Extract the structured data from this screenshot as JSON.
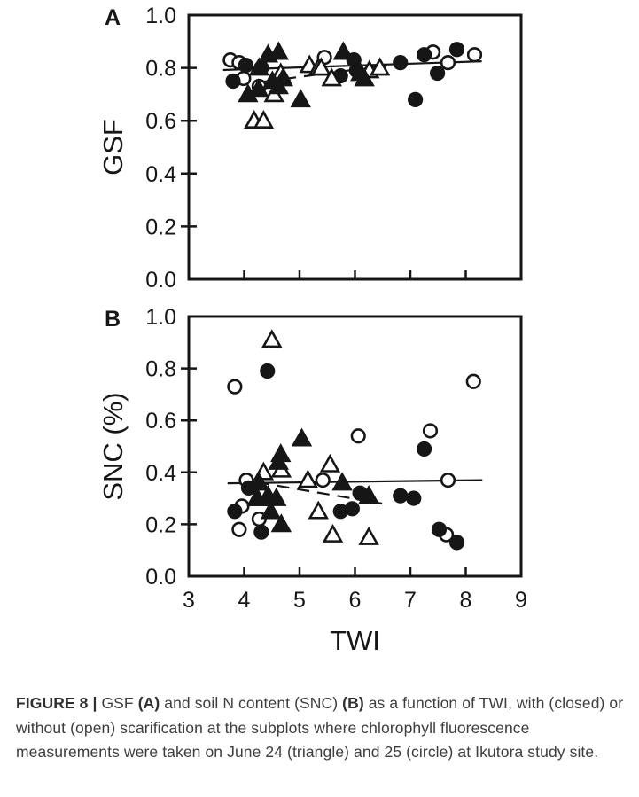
{
  "caption": {
    "label": "FIGURE 8 | ",
    "seg1": "GSF ",
    "seg2": "(A)",
    "seg3": " and soil N content (SNC) ",
    "seg4": "(B)",
    "seg5": " as a function of TWI, with (closed) or without (open) scarification at the subplots where chlorophyll fluorescence measurements were taken on June 24 (triangle) and 25 (circle) at Ikutora study site."
  },
  "legend_semantics": {
    "closed_markers": "with scarification",
    "open_markers": "without scarification",
    "triangle": "June 24",
    "circle": "June 25"
  },
  "colors": {
    "ink": "#161616",
    "background": "#ffffff",
    "caption_text": "#3d3d3d"
  },
  "chart_data": [
    {
      "type": "scatter",
      "panel": "A",
      "title": "",
      "xlabel": "",
      "ylabel": "GSF",
      "xlim": [
        3,
        9
      ],
      "ylim": [
        0.0,
        1.0
      ],
      "grid": false,
      "yticks": [
        0.0,
        0.2,
        0.4,
        0.6,
        0.8,
        1.0
      ],
      "ytick_labels": [
        "0.0",
        "0.2",
        "0.4",
        "0.6",
        "0.8",
        "1.0"
      ],
      "xtick_marks": [
        4,
        5,
        6,
        7,
        8
      ],
      "xtick_labels": [],
      "series": [
        {
          "name": "June 25 without scarification (open circle)",
          "marker": "circle",
          "fill": "open",
          "points": [
            [
              3.75,
              0.83
            ],
            [
              3.91,
              0.82
            ],
            [
              3.99,
              0.76
            ],
            [
              4.27,
              0.73
            ],
            [
              5.45,
              0.84
            ],
            [
              7.41,
              0.86
            ],
            [
              7.68,
              0.82
            ],
            [
              8.16,
              0.85
            ]
          ]
        },
        {
          "name": "June 25 with scarification (closed circle)",
          "marker": "circle",
          "fill": "closed",
          "points": [
            [
              3.8,
              0.75
            ],
            [
              4.03,
              0.81
            ],
            [
              4.31,
              0.8
            ],
            [
              5.74,
              0.77
            ],
            [
              5.98,
              0.83
            ],
            [
              6.03,
              0.79
            ],
            [
              6.82,
              0.82
            ],
            [
              7.09,
              0.68
            ],
            [
              7.25,
              0.85
            ],
            [
              7.49,
              0.78
            ],
            [
              7.84,
              0.87
            ]
          ]
        },
        {
          "name": "June 24 without scarification (open triangle)",
          "marker": "triangle",
          "fill": "open",
          "points": [
            [
              4.18,
              0.6
            ],
            [
              4.35,
              0.6
            ],
            [
              4.54,
              0.7
            ],
            [
              4.66,
              0.78
            ],
            [
              5.18,
              0.81
            ],
            [
              5.34,
              0.8
            ],
            [
              5.39,
              0.8
            ],
            [
              5.58,
              0.76
            ],
            [
              6.26,
              0.79
            ],
            [
              6.45,
              0.8
            ]
          ]
        },
        {
          "name": "June 24 with scarification (closed triangle)",
          "marker": "triangle",
          "fill": "closed",
          "points": [
            [
              4.07,
              0.7
            ],
            [
              4.26,
              0.72
            ],
            [
              4.27,
              0.8
            ],
            [
              4.43,
              0.85
            ],
            [
              4.51,
              0.75
            ],
            [
              4.62,
              0.86
            ],
            [
              4.62,
              0.73
            ],
            [
              4.7,
              0.76
            ],
            [
              5.02,
              0.68
            ],
            [
              5.79,
              0.86
            ],
            [
              6.1,
              0.78
            ],
            [
              6.17,
              0.76
            ]
          ]
        }
      ],
      "trend_lines": [
        {
          "style": "solid",
          "from": [
            3.62,
            0.792
          ],
          "to": [
            8.29,
            0.825
          ]
        },
        {
          "style": "dashed",
          "from": [
            4.35,
            0.748
          ],
          "to": [
            6.58,
            0.809
          ]
        }
      ]
    },
    {
      "type": "scatter",
      "panel": "B",
      "title": "",
      "xlabel": "TWI",
      "ylabel": "SNC (%)",
      "xlim": [
        3,
        9
      ],
      "ylim": [
        0.0,
        1.0
      ],
      "grid": false,
      "yticks": [
        0.0,
        0.2,
        0.4,
        0.6,
        0.8,
        1.0
      ],
      "ytick_labels": [
        "0.0",
        "0.2",
        "0.4",
        "0.6",
        "0.8",
        "1.0"
      ],
      "xtick_marks": [
        4,
        5,
        6,
        7,
        8
      ],
      "xtick_labels": [
        {
          "v": 3,
          "t": "3"
        },
        {
          "v": 4,
          "t": "4"
        },
        {
          "v": 5,
          "t": "5"
        },
        {
          "v": 6,
          "t": "6"
        },
        {
          "v": 7,
          "t": "7"
        },
        {
          "v": 8,
          "t": "8"
        },
        {
          "v": 9,
          "t": "9"
        }
      ],
      "series": [
        {
          "name": "June 25 without scarification (open circle)",
          "marker": "circle",
          "fill": "open",
          "points": [
            [
              3.83,
              0.73
            ],
            [
              3.91,
              0.18
            ],
            [
              3.96,
              0.27
            ],
            [
              4.04,
              0.37
            ],
            [
              4.27,
              0.22
            ],
            [
              5.42,
              0.37
            ],
            [
              6.06,
              0.54
            ],
            [
              7.36,
              0.56
            ],
            [
              7.65,
              0.16
            ],
            [
              7.68,
              0.37
            ],
            [
              8.14,
              0.75
            ]
          ]
        },
        {
          "name": "June 25 with scarification (closed circle)",
          "marker": "circle",
          "fill": "closed",
          "points": [
            [
              3.83,
              0.25
            ],
            [
              4.08,
              0.34
            ],
            [
              4.31,
              0.17
            ],
            [
              4.42,
              0.79
            ],
            [
              5.74,
              0.25
            ],
            [
              5.95,
              0.26
            ],
            [
              6.09,
              0.32
            ],
            [
              6.82,
              0.31
            ],
            [
              7.06,
              0.3
            ],
            [
              7.25,
              0.49
            ],
            [
              7.52,
              0.18
            ],
            [
              7.84,
              0.13
            ]
          ]
        },
        {
          "name": "June 24 without scarification (open triangle)",
          "marker": "triangle",
          "fill": "open",
          "points": [
            [
              4.24,
              0.3
            ],
            [
              4.35,
              0.4
            ],
            [
              4.5,
              0.91
            ],
            [
              4.67,
              0.41
            ],
            [
              5.15,
              0.37
            ],
            [
              5.34,
              0.25
            ],
            [
              5.55,
              0.43
            ],
            [
              5.6,
              0.16
            ],
            [
              6.25,
              0.15
            ]
          ]
        },
        {
          "name": "June 24 with scarification (closed triangle)",
          "marker": "triangle",
          "fill": "closed",
          "points": [
            [
              4.23,
              0.3
            ],
            [
              4.27,
              0.36
            ],
            [
              4.43,
              0.31
            ],
            [
              4.48,
              0.25
            ],
            [
              4.58,
              0.3
            ],
            [
              4.62,
              0.44
            ],
            [
              4.66,
              0.47
            ],
            [
              4.67,
              0.2
            ],
            [
              5.04,
              0.53
            ],
            [
              5.77,
              0.36
            ],
            [
              6.25,
              0.31
            ]
          ]
        }
      ],
      "trend_lines": [
        {
          "style": "solid",
          "from": [
            3.7,
            0.358
          ],
          "to": [
            8.3,
            0.37
          ]
        },
        {
          "style": "dashed",
          "from": [
            4.23,
            0.362
          ],
          "to": [
            6.49,
            0.28
          ]
        }
      ]
    }
  ]
}
